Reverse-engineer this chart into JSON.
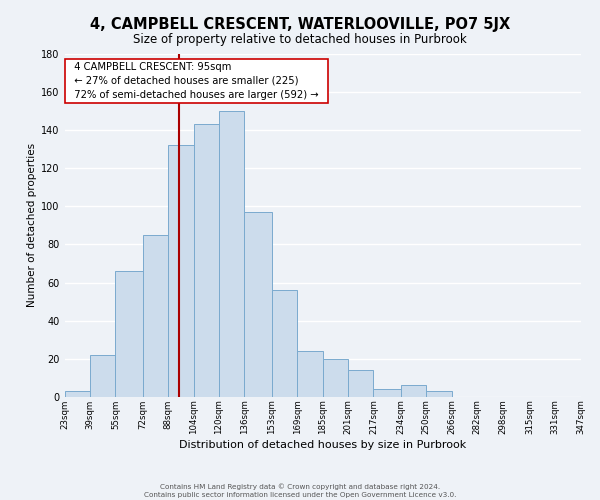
{
  "title": "4, CAMPBELL CRESCENT, WATERLOOVILLE, PO7 5JX",
  "subtitle": "Size of property relative to detached houses in Purbrook",
  "xlabel": "Distribution of detached houses by size in Purbrook",
  "ylabel": "Number of detached properties",
  "bin_edges": [
    23,
    39,
    55,
    72,
    88,
    104,
    120,
    136,
    153,
    169,
    185,
    201,
    217,
    234,
    250,
    266,
    282,
    298,
    315,
    331,
    347
  ],
  "heights": [
    3,
    22,
    66,
    85,
    132,
    143,
    150,
    97,
    56,
    24,
    20,
    14,
    4,
    6,
    3,
    0,
    0,
    0,
    0,
    0
  ],
  "tick_labels": [
    "23sqm",
    "39sqm",
    "55sqm",
    "72sqm",
    "88sqm",
    "104sqm",
    "120sqm",
    "136sqm",
    "153sqm",
    "169sqm",
    "185sqm",
    "201sqm",
    "217sqm",
    "234sqm",
    "250sqm",
    "266sqm",
    "282sqm",
    "298sqm",
    "315sqm",
    "331sqm",
    "347sqm"
  ],
  "bar_color": "#ccdcec",
  "bar_edge_color": "#7aaace",
  "vline_color": "#aa0000",
  "annotation_title": "4 CAMPBELL CRESCENT: 95sqm",
  "annotation_line1": "← 27% of detached houses are smaller (225)",
  "annotation_line2": "72% of semi-detached houses are larger (592) →",
  "annotation_box_color": "#ffffff",
  "annotation_box_edge": "#cc0000",
  "ylim": [
    0,
    180
  ],
  "yticks": [
    0,
    20,
    40,
    60,
    80,
    100,
    120,
    140,
    160,
    180
  ],
  "footer_line1": "Contains HM Land Registry data © Crown copyright and database right 2024.",
  "footer_line2": "Contains public sector information licensed under the Open Government Licence v3.0.",
  "bg_color": "#eef2f7",
  "grid_color": "#ffffff",
  "title_fontsize": 10.5,
  "subtitle_fontsize": 8.5,
  "label_fontsize": 8,
  "ylabel_fontsize": 7.5
}
